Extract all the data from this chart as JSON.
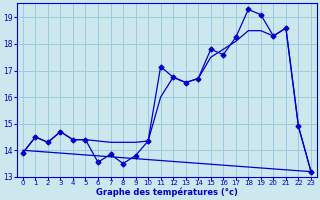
{
  "title": "",
  "xlabel": "Graphe des températures (°c)",
  "background_color": "#cce8ee",
  "grid_color": "#99ccdd",
  "line_color": "#0000cc",
  "x": [
    0,
    1,
    2,
    3,
    4,
    5,
    6,
    7,
    8,
    9,
    10,
    11,
    12,
    13,
    14,
    15,
    16,
    17,
    18,
    19,
    20,
    21,
    22,
    23
  ],
  "y_jagged": [
    13.9,
    14.5,
    14.3,
    14.7,
    14.4,
    14.4,
    13.55,
    13.85,
    13.5,
    13.8,
    14.35,
    17.15,
    16.75,
    16.55,
    16.7,
    17.8,
    17.6,
    18.25,
    19.3,
    19.1,
    18.3,
    18.6,
    14.9,
    13.2
  ],
  "y_smooth": [
    13.9,
    14.5,
    14.3,
    14.7,
    14.4,
    14.4,
    14.35,
    14.3,
    14.3,
    14.3,
    14.35,
    16.0,
    16.75,
    16.55,
    16.7,
    17.5,
    17.8,
    18.1,
    18.5,
    18.5,
    18.3,
    18.6,
    14.9,
    13.2
  ],
  "y_trend": [
    14.0,
    13.965,
    13.93,
    13.895,
    13.86,
    13.825,
    13.79,
    13.755,
    13.72,
    13.685,
    13.65,
    13.615,
    13.58,
    13.545,
    13.51,
    13.475,
    13.44,
    13.405,
    13.37,
    13.335,
    13.3,
    13.265,
    13.23,
    13.2
  ],
  "ylim": [
    13.0,
    19.55
  ],
  "xlim": [
    -0.5,
    23.5
  ],
  "yticks": [
    13,
    14,
    15,
    16,
    17,
    18,
    19
  ],
  "xticks": [
    0,
    1,
    2,
    3,
    4,
    5,
    6,
    7,
    8,
    9,
    10,
    11,
    12,
    13,
    14,
    15,
    16,
    17,
    18,
    19,
    20,
    21,
    22,
    23
  ]
}
